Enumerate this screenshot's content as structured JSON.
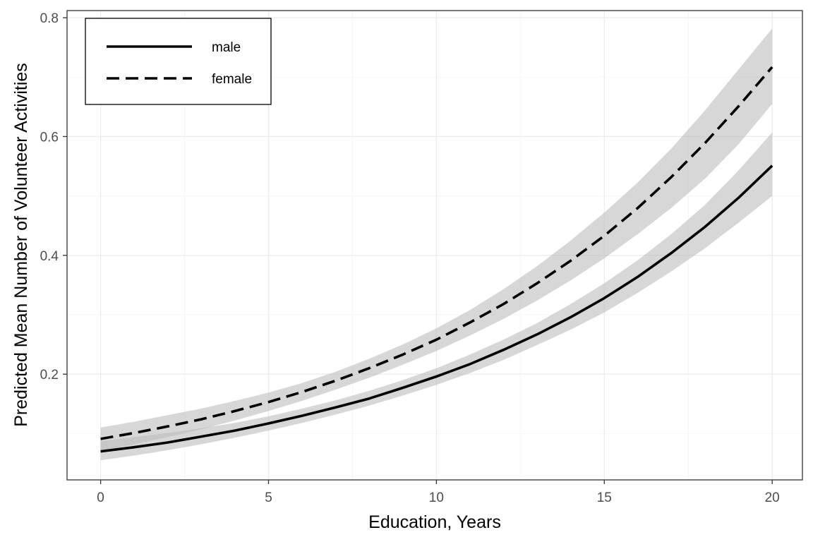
{
  "chart_data": {
    "type": "line",
    "title": "",
    "xlabel": "Education, Years",
    "ylabel": "Predicted Mean Number of Volunteer Activities",
    "xlim": [
      -1,
      20.9
    ],
    "ylim": [
      0.022,
      0.812
    ],
    "x_ticks": [
      0,
      5,
      10,
      15,
      20
    ],
    "x_tick_labels": [
      "0",
      "5",
      "10",
      "15",
      "20"
    ],
    "y_ticks": [
      0.2,
      0.4,
      0.6,
      0.8
    ],
    "y_tick_labels": [
      "0.2",
      "0.4",
      "0.6",
      "0.8"
    ],
    "grid": true,
    "legend_position": "top-left",
    "x": [
      0,
      1,
      2,
      3,
      4,
      5,
      6,
      7,
      8,
      9,
      10,
      11,
      12,
      13,
      14,
      15,
      16,
      17,
      18,
      19,
      20
    ],
    "series": [
      {
        "name": "male",
        "line_style": "solid",
        "values": [
          0.07,
          0.077,
          0.085,
          0.095,
          0.105,
          0.117,
          0.13,
          0.144,
          0.159,
          0.177,
          0.196,
          0.217,
          0.241,
          0.267,
          0.296,
          0.328,
          0.364,
          0.404,
          0.448,
          0.497,
          0.551
        ],
        "ci_lower": [
          0.055,
          0.063,
          0.072,
          0.082,
          0.093,
          0.105,
          0.118,
          0.132,
          0.147,
          0.164,
          0.182,
          0.202,
          0.224,
          0.249,
          0.275,
          0.304,
          0.337,
          0.373,
          0.412,
          0.455,
          0.5
        ],
        "ci_upper": [
          0.087,
          0.094,
          0.101,
          0.109,
          0.118,
          0.129,
          0.142,
          0.156,
          0.172,
          0.19,
          0.21,
          0.233,
          0.258,
          0.286,
          0.318,
          0.353,
          0.392,
          0.436,
          0.485,
          0.543,
          0.607
        ]
      },
      {
        "name": "female",
        "line_style": "dashed",
        "values": [
          0.091,
          0.101,
          0.112,
          0.124,
          0.138,
          0.153,
          0.17,
          0.189,
          0.21,
          0.233,
          0.258,
          0.287,
          0.318,
          0.353,
          0.391,
          0.433,
          0.48,
          0.532,
          0.589,
          0.651,
          0.717
        ],
        "ci_lower": [
          0.071,
          0.082,
          0.094,
          0.107,
          0.122,
          0.138,
          0.155,
          0.174,
          0.194,
          0.216,
          0.239,
          0.265,
          0.293,
          0.324,
          0.358,
          0.395,
          0.436,
          0.48,
          0.529,
          0.587,
          0.655
        ],
        "ci_upper": [
          0.11,
          0.12,
          0.131,
          0.142,
          0.155,
          0.169,
          0.185,
          0.204,
          0.226,
          0.25,
          0.277,
          0.308,
          0.343,
          0.382,
          0.425,
          0.472,
          0.523,
          0.58,
          0.644,
          0.713,
          0.782
        ]
      }
    ]
  },
  "colors": {
    "line": "#000000",
    "ribbon": "#bdbdbd",
    "grid_major": "#ebebeb",
    "grid_minor": "#f5f5f5",
    "panel_border": "#333333",
    "tick_label": "#4d4d4d"
  }
}
